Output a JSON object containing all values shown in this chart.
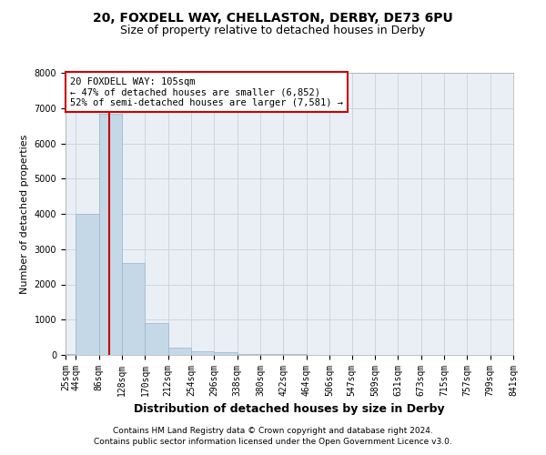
{
  "title1": "20, FOXDELL WAY, CHELLASTON, DERBY, DE73 6PU",
  "title2": "Size of property relative to detached houses in Derby",
  "xlabel": "Distribution of detached houses by size in Derby",
  "ylabel": "Number of detached properties",
  "footnote1": "Contains HM Land Registry data © Crown copyright and database right 2024.",
  "footnote2": "Contains public sector information licensed under the Open Government Licence v3.0.",
  "annotation_line1": "20 FOXDELL WAY: 105sqm",
  "annotation_line2": "← 47% of detached houses are smaller (6,852)",
  "annotation_line3": "52% of semi-detached houses are larger (7,581) →",
  "bar_edges": [
    25,
    44,
    86,
    128,
    170,
    212,
    254,
    296,
    338,
    380,
    422,
    464,
    506,
    547,
    589,
    631,
    673,
    715,
    757,
    799,
    841
  ],
  "bar_heights": [
    30,
    4000,
    6850,
    2600,
    900,
    200,
    100,
    80,
    30,
    20,
    15,
    10,
    5,
    3,
    2,
    1,
    1,
    0,
    0,
    1
  ],
  "bar_color": "#c5d8e8",
  "bar_edge_color": "#9ab5cb",
  "red_line_x": 105,
  "ylim": [
    0,
    8000
  ],
  "yticks": [
    0,
    1000,
    2000,
    3000,
    4000,
    5000,
    6000,
    7000,
    8000
  ],
  "grid_color": "#ccd6e0",
  "bg_color": "#eaeff5",
  "annotation_box_color": "#cc0000",
  "title1_fontsize": 10,
  "title2_fontsize": 9,
  "ylabel_fontsize": 8,
  "xlabel_fontsize": 9,
  "tick_fontsize": 7,
  "annotation_fontsize": 7.5,
  "footnote_fontsize": 6.5
}
